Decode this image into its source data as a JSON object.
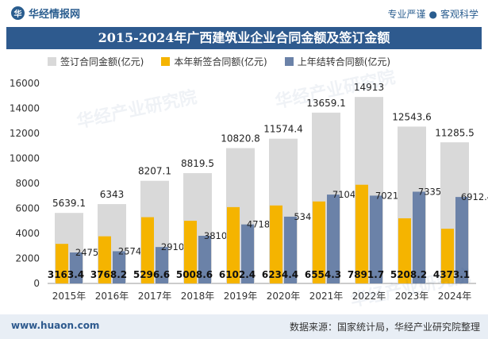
{
  "header": {
    "brand": "华经情报网",
    "brand_icon": "hua-logo-icon",
    "slogan_left": "专业严谨",
    "slogan_sep": "●",
    "slogan_right": "客观科学"
  },
  "footer": {
    "url": "www.huaon.com",
    "source": "数据来源：国家统计局，华经产业研究院整理"
  },
  "watermark": "华经产业研究院",
  "colors": {
    "total": "#d9d9d9",
    "new": "#f5b400",
    "carry": "#6b82a8",
    "title_bg": "#2e5a8e"
  },
  "chart_data": {
    "type": "bar",
    "title": "2015-2024年广西建筑业企业合同金额及签订金额",
    "categories": [
      "2015年",
      "2016年",
      "2017年",
      "2018年",
      "2019年",
      "2020年",
      "2021年",
      "2022年",
      "2023年",
      "2024年"
    ],
    "series": [
      {
        "name": "签订合同金额(亿元)",
        "values": [
          5639.1,
          6343,
          8207.1,
          8819.5,
          10820.8,
          11574.4,
          13659.1,
          14913,
          12543.6,
          11285.5
        ]
      },
      {
        "name": "本年新签合同额(亿元)",
        "values": [
          3163.4,
          3768.2,
          5296.6,
          5008.6,
          6102.4,
          6234.4,
          6554.3,
          7891.7,
          5208.2,
          4373.1
        ]
      },
      {
        "name": "上年结转合同额(亿元)",
        "values": [
          2475.7,
          2574.8,
          2910.6,
          3810.9,
          4718.4,
          5340,
          7104.8,
          7021.4,
          7335.5,
          6912.4
        ]
      }
    ],
    "data_labels": {
      "total": [
        "5639.1",
        "6343",
        "8207.1",
        "8819.5",
        "10820.8",
        "11574.4",
        "13659.1",
        "14913",
        "12543.6",
        "11285.5"
      ],
      "new": [
        "3163.4",
        "3768.2",
        "5296.6",
        "5008.6",
        "6102.4",
        "6234.4",
        "6554.3",
        "7891.7",
        "5208.2",
        "4373.1"
      ],
      "carry": [
        "2475.7",
        "2574.8",
        "2910.6",
        "3810.9",
        "4718.4",
        "5340",
        "7104.8",
        "7021.4",
        "7335.5",
        "6912.4"
      ]
    },
    "yticks": [
      "0",
      "2000",
      "4000",
      "6000",
      "8000",
      "10000",
      "12000",
      "14000",
      "16000"
    ],
    "ylim": [
      0,
      16000
    ],
    "grid": false,
    "legend_position": "top"
  }
}
